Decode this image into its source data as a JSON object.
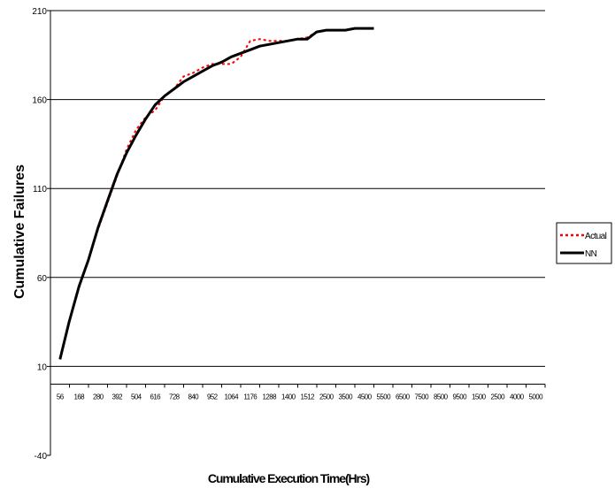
{
  "chart_data": {
    "type": "line",
    "title": "",
    "xlabel": "Cumulative Execution Time(Hrs)",
    "ylabel": "Cumulative Failures",
    "ylim": [
      -40,
      210
    ],
    "yticks": [
      -40,
      10,
      60,
      110,
      160,
      210
    ],
    "grid": true,
    "legend_position": "right",
    "categories": [
      "56",
      "168",
      "280",
      "392",
      "504",
      "616",
      "728",
      "840",
      "952",
      "1064",
      "1176",
      "1288",
      "1400",
      "1512",
      "2500",
      "3500",
      "4500",
      "5500",
      "6500",
      "7500",
      "8500",
      "9500",
      "1500",
      "2500",
      "4000",
      "5000"
    ],
    "series": [
      {
        "name": "Actual",
        "color": "#ff0000",
        "dash": "dotted",
        "x": [
          56,
          110,
          168,
          224,
          280,
          336,
          392,
          448,
          504,
          560,
          616,
          672,
          728,
          784,
          840,
          896,
          952,
          1008,
          1064,
          1120,
          1176,
          1232,
          1288,
          1344,
          1400,
          1456,
          1512,
          2000,
          2500,
          3000,
          3500,
          4000,
          4500
        ],
        "values": [
          14,
          35,
          54,
          70,
          87,
          102,
          117,
          132,
          143,
          150,
          154,
          162,
          166,
          173,
          175,
          178,
          180,
          180,
          180,
          184,
          193,
          194,
          193,
          193,
          193,
          194,
          195,
          198,
          199,
          199,
          199,
          200,
          200
        ]
      },
      {
        "name": "NN",
        "color": "#000000",
        "dash": "solid",
        "x": [
          56,
          110,
          168,
          224,
          280,
          336,
          392,
          448,
          504,
          560,
          616,
          672,
          728,
          784,
          840,
          896,
          952,
          1008,
          1064,
          1120,
          1176,
          1232,
          1288,
          1344,
          1400,
          1456,
          1512,
          2000,
          2500,
          3000,
          3500,
          4000,
          4500,
          5000
        ],
        "values": [
          14,
          35,
          55,
          70,
          88,
          103,
          118,
          130,
          140,
          149,
          157,
          162,
          166,
          170,
          173,
          176,
          179,
          181,
          184,
          186,
          188,
          190,
          191,
          192,
          193,
          194,
          194,
          198,
          199,
          199,
          199,
          200,
          200,
          200
        ]
      }
    ]
  }
}
